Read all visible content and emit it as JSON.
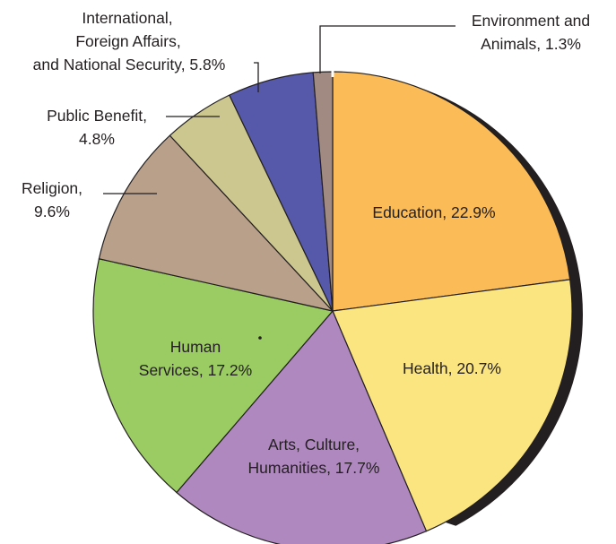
{
  "chart_data": {
    "type": "pie",
    "title": "",
    "slices": [
      {
        "name": "Education",
        "value": 22.9,
        "color": "#fbbb57",
        "label_lines": [
          "Education, 22.9%"
        ],
        "label_placement": "inside"
      },
      {
        "name": "Health",
        "value": 20.7,
        "color": "#fbe581",
        "label_lines": [
          "Health, 20.7%"
        ],
        "label_placement": "inside"
      },
      {
        "name": "Arts, Culture, Humanities",
        "value": 17.7,
        "color": "#b088c0",
        "label_lines": [
          "Arts, Culture,",
          "Humanities, 17.7%"
        ],
        "label_placement": "inside"
      },
      {
        "name": "Human Services",
        "value": 17.2,
        "color": "#9bcb63",
        "label_lines": [
          "Human",
          "Services, 17.2%"
        ],
        "label_placement": "inside"
      },
      {
        "name": "Religion",
        "value": 9.6,
        "color": "#b9a08a",
        "label_lines": [
          "Religion,",
          "9.6%"
        ],
        "label_placement": "outside-left"
      },
      {
        "name": "Public Benefit",
        "value": 4.8,
        "color": "#cbc78e",
        "label_lines": [
          "Public Benefit,",
          "4.8%"
        ],
        "label_placement": "outside-left"
      },
      {
        "name": "International, Foreign Affairs, and National Security",
        "value": 5.8,
        "color": "#5659a9",
        "label_lines": [
          "International,",
          "Foreign Affairs,",
          "and National Security, 5.8%"
        ],
        "label_placement": "outside-top"
      },
      {
        "name": "Environment and Animals",
        "value": 1.3,
        "color": "#a08a82",
        "label_lines": [
          "Environment and",
          "Animals, 1.3%"
        ],
        "label_placement": "outside-top-right"
      }
    ],
    "start_angle": "12 o'clock",
    "direction": "clockwise",
    "style": "3D rim shadow on right edge",
    "outline_color": "#231f20"
  }
}
